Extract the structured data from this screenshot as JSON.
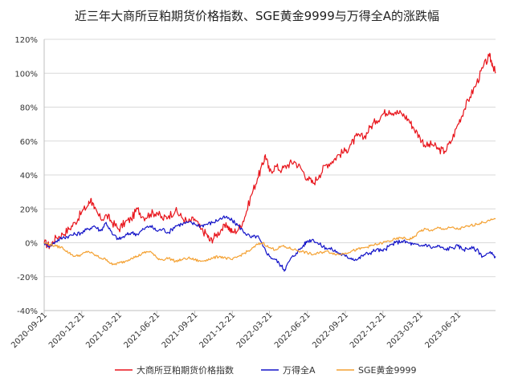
{
  "chart_data": {
    "type": "line",
    "title": "近三年大商所豆粕期货价格指数、SGE黄金9999与万得全A的涨跌幅",
    "xlabel": "",
    "ylabel": "",
    "ylim": [
      -40,
      120
    ],
    "y_ticks": [
      "-40%",
      "-20%",
      "0%",
      "20%",
      "40%",
      "60%",
      "80%",
      "100%",
      "120%"
    ],
    "x_ticks": [
      "2020-09-21",
      "2020-12-21",
      "2021-03-21",
      "2021-06-21",
      "2021-09-21",
      "2021-12-21",
      "2022-03-21",
      "2022-06-21",
      "2022-09-21",
      "2022-12-21",
      "2023-03-21",
      "2023-06-21"
    ],
    "x_range": [
      "2020-09-21",
      "2023-09-20"
    ],
    "grid": "horizontal",
    "legend_position": "bottom",
    "series": [
      {
        "name": "大商所豆粕期货价格指数",
        "color": "#e8141b",
        "points": [
          [
            "2020-09-21",
            0
          ],
          [
            "2020-10-05",
            -2
          ],
          [
            "2020-10-20",
            3
          ],
          [
            "2020-11-05",
            5
          ],
          [
            "2020-11-20",
            8
          ],
          [
            "2020-12-05",
            12
          ],
          [
            "2020-12-21",
            18
          ],
          [
            "2021-01-05",
            22
          ],
          [
            "2021-01-12",
            26
          ],
          [
            "2021-01-20",
            20
          ],
          [
            "2021-02-05",
            14
          ],
          [
            "2021-02-20",
            16
          ],
          [
            "2021-03-05",
            12
          ],
          [
            "2021-03-21",
            8
          ],
          [
            "2021-04-05",
            12
          ],
          [
            "2021-04-20",
            14
          ],
          [
            "2021-05-05",
            20
          ],
          [
            "2021-05-20",
            15
          ],
          [
            "2021-06-05",
            17
          ],
          [
            "2021-06-21",
            18
          ],
          [
            "2021-07-05",
            14
          ],
          [
            "2021-07-20",
            16
          ],
          [
            "2021-08-05",
            19
          ],
          [
            "2021-08-20",
            15
          ],
          [
            "2021-09-05",
            12
          ],
          [
            "2021-09-21",
            14
          ],
          [
            "2021-10-05",
            8
          ],
          [
            "2021-10-20",
            5
          ],
          [
            "2021-10-28",
            1
          ],
          [
            "2021-11-10",
            4
          ],
          [
            "2021-11-25",
            8
          ],
          [
            "2021-12-10",
            10
          ],
          [
            "2021-12-21",
            6
          ],
          [
            "2022-01-05",
            8
          ],
          [
            "2022-01-20",
            15
          ],
          [
            "2022-02-05",
            28
          ],
          [
            "2022-02-20",
            38
          ],
          [
            "2022-03-05",
            46
          ],
          [
            "2022-03-11",
            52
          ],
          [
            "2022-03-21",
            42
          ],
          [
            "2022-04-05",
            45
          ],
          [
            "2022-04-20",
            43
          ],
          [
            "2022-05-05",
            46
          ],
          [
            "2022-05-20",
            48
          ],
          [
            "2022-06-05",
            44
          ],
          [
            "2022-06-21",
            38
          ],
          [
            "2022-07-05",
            35
          ],
          [
            "2022-07-20",
            40
          ],
          [
            "2022-08-05",
            46
          ],
          [
            "2022-08-20",
            48
          ],
          [
            "2022-09-05",
            52
          ],
          [
            "2022-09-21",
            54
          ],
          [
            "2022-10-05",
            58
          ],
          [
            "2022-10-20",
            63
          ],
          [
            "2022-11-05",
            62
          ],
          [
            "2022-11-20",
            68
          ],
          [
            "2022-12-05",
            72
          ],
          [
            "2022-12-21",
            76
          ],
          [
            "2023-01-05",
            78
          ],
          [
            "2023-01-20",
            77
          ],
          [
            "2023-02-05",
            76
          ],
          [
            "2023-02-20",
            73
          ],
          [
            "2023-03-05",
            68
          ],
          [
            "2023-03-21",
            62
          ],
          [
            "2023-04-05",
            57
          ],
          [
            "2023-04-20",
            58
          ],
          [
            "2023-05-05",
            55
          ],
          [
            "2023-05-20",
            54
          ],
          [
            "2023-06-05",
            60
          ],
          [
            "2023-06-21",
            70
          ],
          [
            "2023-07-05",
            78
          ],
          [
            "2023-07-20",
            86
          ],
          [
            "2023-08-05",
            94
          ],
          [
            "2023-08-20",
            103
          ],
          [
            "2023-09-05",
            110
          ],
          [
            "2023-09-12",
            106
          ],
          [
            "2023-09-20",
            100
          ]
        ]
      },
      {
        "name": "万得全A",
        "color": "#1414c8",
        "points": [
          [
            "2020-09-21",
            0
          ],
          [
            "2020-10-05",
            -2
          ],
          [
            "2020-10-20",
            1
          ],
          [
            "2020-11-05",
            3
          ],
          [
            "2020-11-20",
            4
          ],
          [
            "2020-12-05",
            5
          ],
          [
            "2020-12-21",
            6
          ],
          [
            "2021-01-05",
            8
          ],
          [
            "2021-01-20",
            10
          ],
          [
            "2021-02-05",
            7
          ],
          [
            "2021-02-18",
            12
          ],
          [
            "2021-03-05",
            5
          ],
          [
            "2021-03-21",
            2
          ],
          [
            "2021-04-05",
            4
          ],
          [
            "2021-04-20",
            6
          ],
          [
            "2021-05-05",
            5
          ],
          [
            "2021-05-20",
            8
          ],
          [
            "2021-06-05",
            10
          ],
          [
            "2021-06-21",
            7
          ],
          [
            "2021-07-05",
            8
          ],
          [
            "2021-07-20",
            6
          ],
          [
            "2021-08-05",
            10
          ],
          [
            "2021-08-20",
            11
          ],
          [
            "2021-09-05",
            12
          ],
          [
            "2021-09-21",
            11
          ],
          [
            "2021-10-05",
            10
          ],
          [
            "2021-10-20",
            11
          ],
          [
            "2021-11-05",
            12
          ],
          [
            "2021-11-20",
            14
          ],
          [
            "2021-12-05",
            15
          ],
          [
            "2021-12-21",
            13
          ],
          [
            "2022-01-05",
            10
          ],
          [
            "2022-01-20",
            6
          ],
          [
            "2022-02-05",
            3
          ],
          [
            "2022-02-20",
            4
          ],
          [
            "2022-03-05",
            -2
          ],
          [
            "2022-03-21",
            -8
          ],
          [
            "2022-04-05",
            -10
          ],
          [
            "2022-04-20",
            -14
          ],
          [
            "2022-04-27",
            -16
          ],
          [
            "2022-05-10",
            -10
          ],
          [
            "2022-05-25",
            -6
          ],
          [
            "2022-06-10",
            -2
          ],
          [
            "2022-06-21",
            1
          ],
          [
            "2022-07-05",
            2
          ],
          [
            "2022-07-20",
            -1
          ],
          [
            "2022-08-05",
            -3
          ],
          [
            "2022-08-20",
            -4
          ],
          [
            "2022-09-05",
            -6
          ],
          [
            "2022-09-21",
            -8
          ],
          [
            "2022-10-05",
            -9
          ],
          [
            "2022-10-20",
            -10
          ],
          [
            "2022-11-05",
            -7
          ],
          [
            "2022-11-20",
            -6
          ],
          [
            "2022-12-05",
            -4
          ],
          [
            "2022-12-21",
            -5
          ],
          [
            "2023-01-05",
            -2
          ],
          [
            "2023-01-20",
            0
          ],
          [
            "2023-02-05",
            1
          ],
          [
            "2023-02-20",
            0
          ],
          [
            "2023-03-05",
            -1
          ],
          [
            "2023-03-21",
            -2
          ],
          [
            "2023-04-05",
            -1
          ],
          [
            "2023-04-20",
            -3
          ],
          [
            "2023-05-05",
            -2
          ],
          [
            "2023-05-20",
            -4
          ],
          [
            "2023-06-05",
            -3
          ],
          [
            "2023-06-21",
            -2
          ],
          [
            "2023-07-05",
            -4
          ],
          [
            "2023-07-20",
            -3
          ],
          [
            "2023-08-05",
            -4
          ],
          [
            "2023-08-20",
            -8
          ],
          [
            "2023-09-05",
            -6
          ],
          [
            "2023-09-20",
            -8
          ]
        ]
      },
      {
        "name": "SGE黄金9999",
        "color": "#f4a132",
        "points": [
          [
            "2020-09-21",
            0
          ],
          [
            "2020-10-05",
            -1
          ],
          [
            "2020-10-20",
            -2
          ],
          [
            "2020-11-05",
            -3
          ],
          [
            "2020-11-20",
            -6
          ],
          [
            "2020-12-05",
            -8
          ],
          [
            "2020-12-21",
            -7
          ],
          [
            "2021-01-05",
            -5
          ],
          [
            "2021-01-20",
            -7
          ],
          [
            "2021-02-05",
            -9
          ],
          [
            "2021-02-20",
            -10
          ],
          [
            "2021-03-05",
            -13
          ],
          [
            "2021-03-21",
            -12
          ],
          [
            "2021-04-05",
            -11
          ],
          [
            "2021-04-20",
            -9
          ],
          [
            "2021-05-05",
            -8
          ],
          [
            "2021-05-20",
            -6
          ],
          [
            "2021-06-05",
            -5
          ],
          [
            "2021-06-21",
            -9
          ],
          [
            "2021-07-05",
            -10
          ],
          [
            "2021-07-20",
            -9
          ],
          [
            "2021-08-05",
            -11
          ],
          [
            "2021-08-20",
            -10
          ],
          [
            "2021-09-05",
            -9
          ],
          [
            "2021-09-21",
            -10
          ],
          [
            "2021-10-05",
            -11
          ],
          [
            "2021-10-20",
            -10
          ],
          [
            "2021-11-05",
            -9
          ],
          [
            "2021-11-20",
            -8
          ],
          [
            "2021-12-05",
            -9
          ],
          [
            "2021-12-21",
            -10
          ],
          [
            "2022-01-05",
            -8
          ],
          [
            "2022-01-20",
            -6
          ],
          [
            "2022-02-05",
            -4
          ],
          [
            "2022-02-20",
            -1
          ],
          [
            "2022-03-05",
            0
          ],
          [
            "2022-03-21",
            -3
          ],
          [
            "2022-04-05",
            -4
          ],
          [
            "2022-04-20",
            -2
          ],
          [
            "2022-05-05",
            -3
          ],
          [
            "2022-05-20",
            -4
          ],
          [
            "2022-06-05",
            -5
          ],
          [
            "2022-06-21",
            -6
          ],
          [
            "2022-07-05",
            -7
          ],
          [
            "2022-07-20",
            -6
          ],
          [
            "2022-08-05",
            -5
          ],
          [
            "2022-08-20",
            -6
          ],
          [
            "2022-09-05",
            -7
          ],
          [
            "2022-09-21",
            -6
          ],
          [
            "2022-10-05",
            -5
          ],
          [
            "2022-10-20",
            -4
          ],
          [
            "2022-11-05",
            -3
          ],
          [
            "2022-11-20",
            -2
          ],
          [
            "2022-12-05",
            -1
          ],
          [
            "2022-12-21",
            0
          ],
          [
            "2023-01-05",
            1
          ],
          [
            "2023-01-20",
            2
          ],
          [
            "2023-02-05",
            3
          ],
          [
            "2023-02-20",
            2
          ],
          [
            "2023-03-05",
            3
          ],
          [
            "2023-03-21",
            7
          ],
          [
            "2023-04-05",
            8
          ],
          [
            "2023-04-20",
            7
          ],
          [
            "2023-05-05",
            9
          ],
          [
            "2023-05-20",
            8
          ],
          [
            "2023-06-05",
            9
          ],
          [
            "2023-06-21",
            8
          ],
          [
            "2023-07-05",
            9
          ],
          [
            "2023-07-20",
            10
          ],
          [
            "2023-08-05",
            11
          ],
          [
            "2023-08-20",
            12
          ],
          [
            "2023-09-05",
            13
          ],
          [
            "2023-09-20",
            14
          ]
        ]
      }
    ]
  }
}
